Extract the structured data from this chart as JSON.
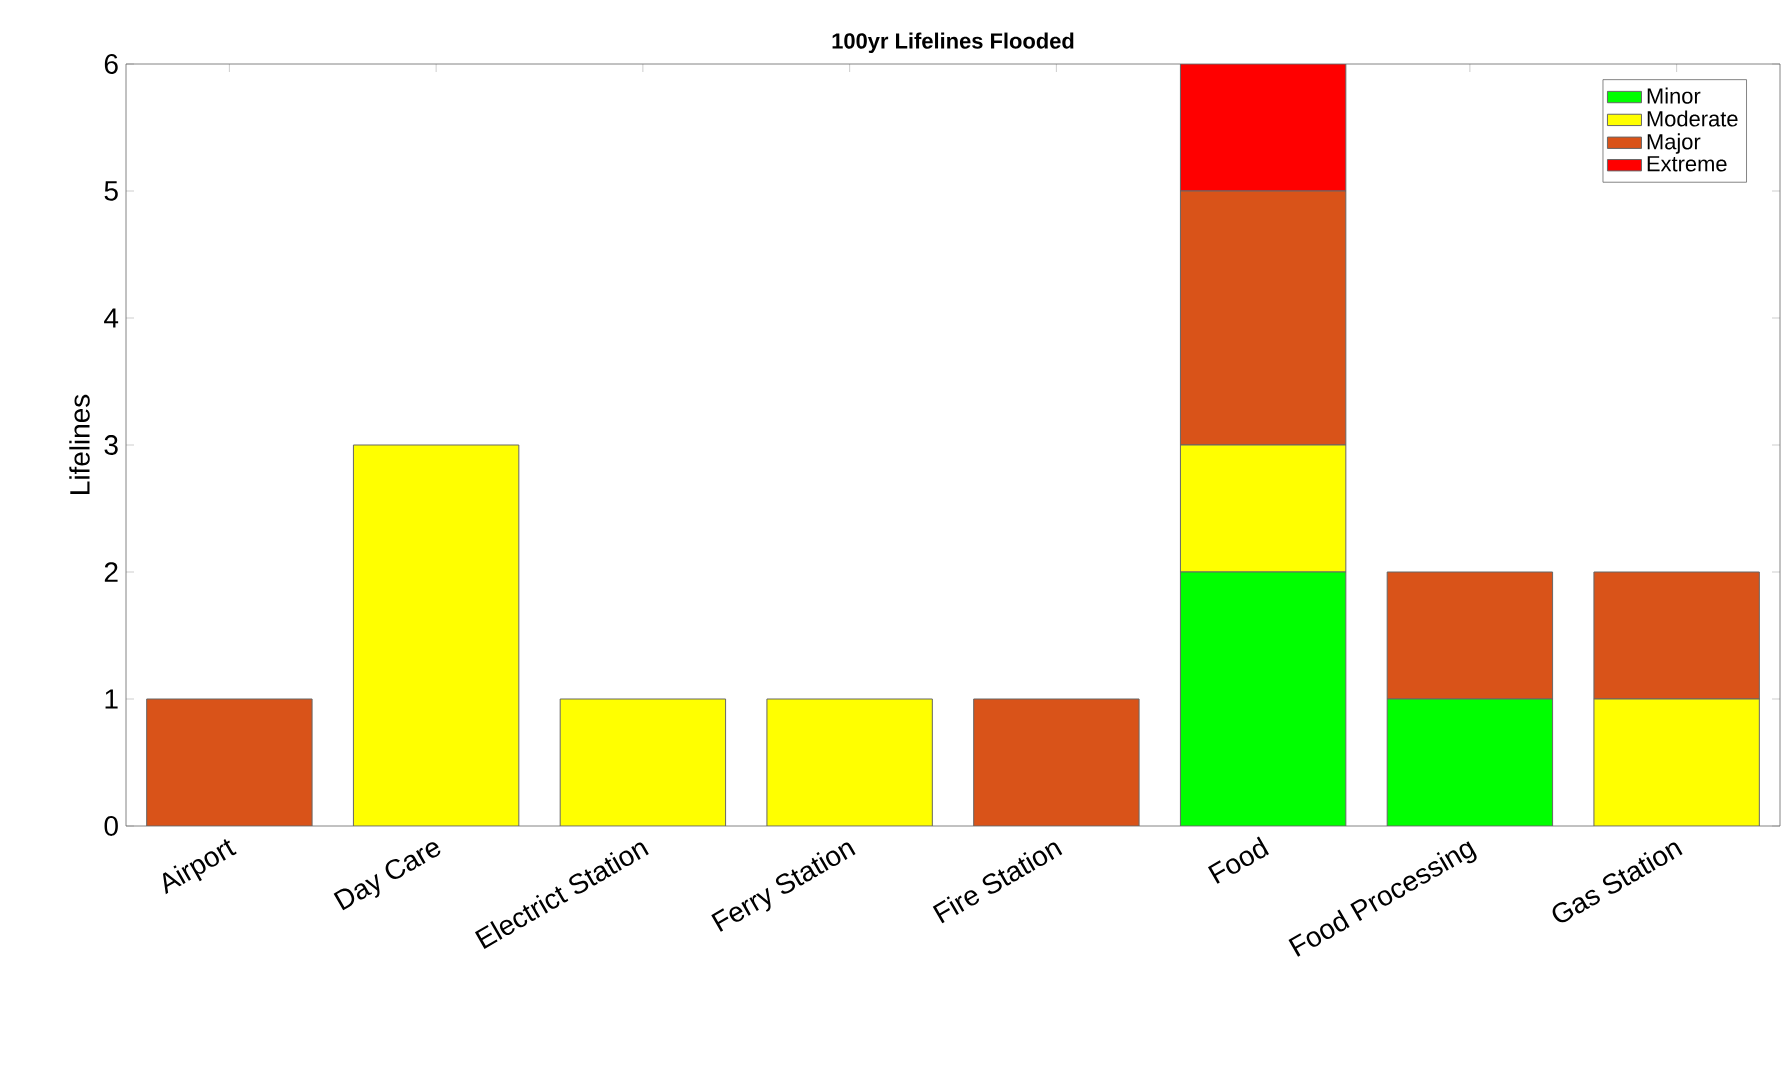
{
  "chart_data": {
    "type": "bar",
    "title": "100yr Lifelines Flooded",
    "ylabel": "Lifelines",
    "categories": [
      "Airport",
      "Day Care",
      "Electrict Station",
      "Ferry Station",
      "Fire Station",
      "Food",
      "Food Processing",
      "Gas Station"
    ],
    "series": [
      {
        "name": "Minor",
        "color": "#00ff00",
        "values": [
          0,
          0,
          0,
          0,
          0,
          2,
          1,
          0
        ]
      },
      {
        "name": "Moderate",
        "color": "#ffff00",
        "values": [
          0,
          3,
          1,
          1,
          0,
          1,
          0,
          1
        ]
      },
      {
        "name": "Major",
        "color": "#d95319",
        "values": [
          1,
          0,
          0,
          0,
          1,
          2,
          1,
          1
        ]
      },
      {
        "name": "Extreme",
        "color": "#ff0000",
        "values": [
          0,
          0,
          0,
          0,
          0,
          1,
          0,
          0
        ]
      }
    ],
    "stacked": true,
    "ylim": [
      0,
      6
    ],
    "yticks": [
      0,
      1,
      2,
      3,
      4,
      5,
      6
    ],
    "grid": false,
    "legend": "top right"
  }
}
